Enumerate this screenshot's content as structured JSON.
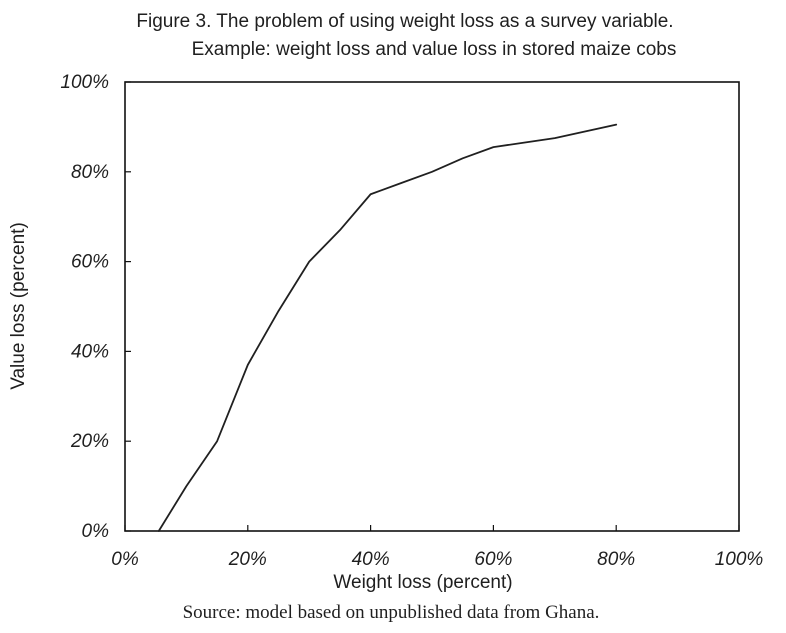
{
  "chart_data": {
    "type": "line",
    "title": "Figure 3. The problem of using weight loss as a survey variable.",
    "subtitle": "Example: weight loss and value loss in stored maize cobs",
    "xlabel": "Weight loss (percent)",
    "ylabel": "Value loss (percent)",
    "xlim": [
      0,
      100
    ],
    "ylim": [
      0,
      100
    ],
    "x_ticks": [
      "0%",
      "20%",
      "40%",
      "60%",
      "80%",
      "100%"
    ],
    "y_ticks": [
      "0%",
      "20%",
      "40%",
      "60%",
      "80%",
      "100%"
    ],
    "grid": false,
    "series": [
      {
        "x": [
          5.5,
          10,
          15,
          20,
          25,
          30,
          35,
          40,
          45,
          50,
          55,
          60,
          65,
          70,
          75,
          80
        ],
        "y": [
          0,
          10,
          20,
          37,
          49,
          60,
          67,
          75,
          77.5,
          80,
          83,
          85.5,
          86.5,
          87.5,
          89,
          90.5
        ]
      }
    ],
    "note": "Source: model based on unpublished data from Ghana.",
    "line_color": "#202020"
  }
}
